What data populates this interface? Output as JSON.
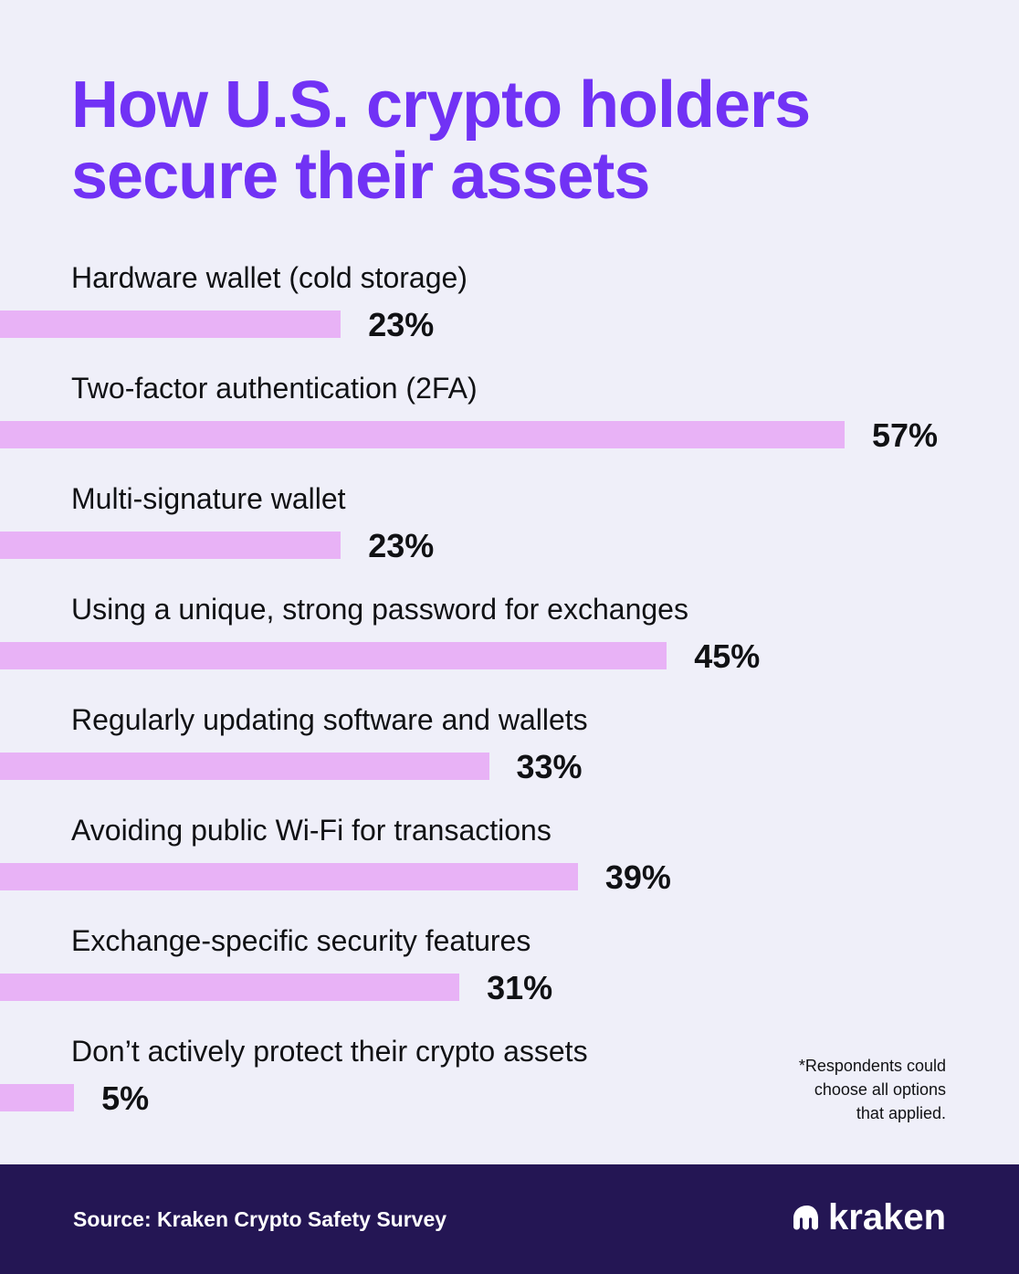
{
  "title": {
    "line1": "How U.S. crypto holders",
    "line2": "secure their assets"
  },
  "chart_data": {
    "type": "bar",
    "orientation": "horizontal",
    "categories": [
      "Hardware wallet (cold storage)",
      "Two-factor authentication (2FA)",
      "Multi-signature wallet",
      "Using a unique, strong password for exchanges",
      "Regularly updating software and wallets",
      "Avoiding public Wi-Fi for transactions",
      "Exchange-specific security features",
      "Don’t actively protect their crypto assets"
    ],
    "values": [
      23,
      57,
      23,
      45,
      33,
      39,
      31,
      5
    ],
    "value_labels": [
      "23%",
      "57%",
      "23%",
      "45%",
      "33%",
      "39%",
      "31%",
      "5%"
    ],
    "unit": "%",
    "grid": false,
    "bar_color": "#e8b2f6"
  },
  "footnote": {
    "line1": "*Respondents could",
    "line2": "choose all options",
    "line3": "that applied."
  },
  "footer": {
    "source": "Source: Kraken Crypto Safety Survey",
    "brand": "kraken"
  },
  "colors": {
    "background": "#efeff9",
    "title": "#7132f5",
    "bar": "#e8b2f6",
    "text": "#101114",
    "footer_background": "#241654",
    "footer_text": "#ffffff"
  },
  "icons": {
    "brand_logo": "kraken-logo-icon"
  }
}
